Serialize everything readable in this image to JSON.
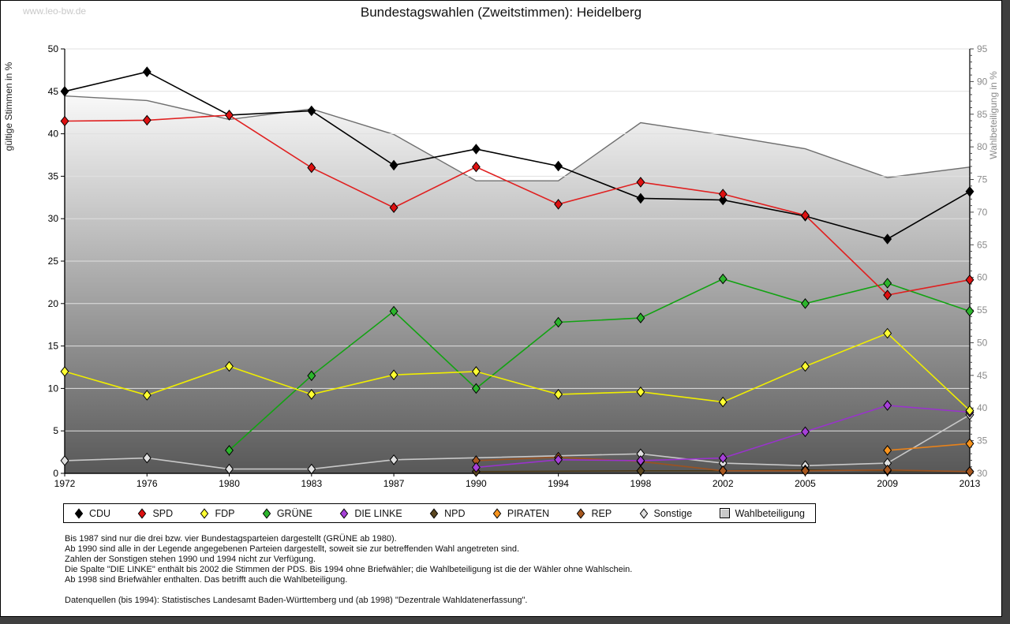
{
  "window": {
    "watermark": "www.leo-bw.de",
    "title": "Bundestagswahlen (Zweitstimmen): Heidelberg"
  },
  "footnotes": [
    "Bis 1987 sind nur die drei bzw. vier Bundestagsparteien dargestellt (GRÜNE ab 1980).",
    "Ab 1990 sind alle in der Legende angegebenen Parteien dargestellt, soweit sie zur betreffenden Wahl angetreten sind.",
    "Zahlen der Sonstigen stehen 1990 und 1994 nicht zur Verfügung.",
    "Die Spalte \"DIE LINKE\" enthält bis 2002 die Stimmen der PDS. Bis 1994 ohne Briefwähler; die Wahlbeteiligung ist die der Wähler ohne Wahlschein.",
    "Ab 1998 sind Briefwähler enthalten. Das betrifft auch die Wahlbeteiligung.",
    "",
    "Datenquellen (bis 1994): Statistisches Landesamt Baden-Württemberg und (ab 1998) \"Dezentrale Wahldatenerfassung\"."
  ],
  "chart_data": {
    "type": "line",
    "title": "Bundestagswahlen (Zweitstimmen): Heidelberg",
    "categories": [
      1972,
      1976,
      1980,
      1983,
      1987,
      1990,
      1994,
      1998,
      2002,
      2005,
      2009,
      2013
    ],
    "xlabel": "",
    "y_left": {
      "label": "gültige Stimmen in %",
      "min": 0,
      "max": 50,
      "step": 5
    },
    "y_right": {
      "label": "Wahlbeteiligung in %",
      "min": 30,
      "max": 95,
      "step": 5,
      "minor_step": 1
    },
    "grid": true,
    "legend_position": "bottom",
    "series": [
      {
        "name": "CDU",
        "axis": "left",
        "line_color": "#000000",
        "marker_color": "#000000",
        "values": [
          45.0,
          47.3,
          42.2,
          42.7,
          36.3,
          38.2,
          36.2,
          32.4,
          32.2,
          30.3,
          27.6,
          33.2
        ]
      },
      {
        "name": "SPD",
        "axis": "left",
        "line_color": "#e02020",
        "marker_color": "#dd1111",
        "values": [
          41.5,
          41.6,
          42.2,
          36.0,
          31.3,
          36.1,
          31.7,
          34.3,
          32.9,
          30.4,
          21.0,
          22.8
        ]
      },
      {
        "name": "FDP",
        "axis": "left",
        "line_color": "#f0ee00",
        "marker_color": "#ffff33",
        "values": [
          12.0,
          9.2,
          12.6,
          9.3,
          11.6,
          12.0,
          9.3,
          9.6,
          8.4,
          12.6,
          16.5,
          7.4
        ]
      },
      {
        "name": "GRÜNE",
        "axis": "left",
        "line_color": "#12a312",
        "marker_color": "#2db52d",
        "values": [
          null,
          null,
          2.7,
          11.5,
          19.1,
          10.0,
          17.8,
          18.3,
          22.9,
          20.0,
          22.4,
          19.1
        ]
      },
      {
        "name": "DIE LINKE",
        "axis": "left",
        "line_color": "#9933cc",
        "marker_color": "#a640d8",
        "values": [
          null,
          null,
          null,
          null,
          null,
          0.7,
          1.6,
          1.5,
          1.8,
          4.9,
          8.0,
          7.2
        ]
      },
      {
        "name": "NPD",
        "axis": "left",
        "line_color": "#4b3a18",
        "marker_color": "#5a4620",
        "values": [
          null,
          null,
          null,
          null,
          null,
          0.2,
          null,
          0.3,
          0.3,
          0.4,
          0.3,
          0.2
        ]
      },
      {
        "name": "PIRATEN",
        "axis": "left",
        "line_color": "#e8821a",
        "marker_color": "#f7941e",
        "values": [
          null,
          null,
          null,
          null,
          null,
          null,
          null,
          null,
          null,
          null,
          2.7,
          3.5
        ]
      },
      {
        "name": "REP",
        "axis": "left",
        "line_color": "#9c5220",
        "marker_color": "#a8581f",
        "values": [
          null,
          null,
          null,
          null,
          null,
          1.5,
          1.9,
          1.4,
          0.3,
          0.3,
          0.4,
          0.2
        ]
      },
      {
        "name": "Sonstige",
        "axis": "left",
        "line_color": "#c8c8c8",
        "marker_color": "#e0e0e0",
        "values": [
          1.5,
          1.8,
          0.5,
          0.5,
          1.6,
          null,
          null,
          2.3,
          1.2,
          0.9,
          1.2,
          6.9
        ]
      }
    ],
    "turnout": {
      "name": "Wahlbeteiligung",
      "axis": "right",
      "style": "area",
      "line_color": "#6f6f6f",
      "fill_top": "#ffffff",
      "fill_bottom": "#585858",
      "swatch": "#c9c9c9",
      "values": [
        87.8,
        87.1,
        84.2,
        85.8,
        81.9,
        74.8,
        74.8,
        83.7,
        81.8,
        79.7,
        75.3,
        76.9
      ]
    },
    "z_order": [
      "Sonstige",
      "NPD",
      "REP",
      "PIRATEN",
      "DIE LINKE",
      "GRÜNE",
      "FDP",
      "CDU",
      "SPD"
    ]
  }
}
